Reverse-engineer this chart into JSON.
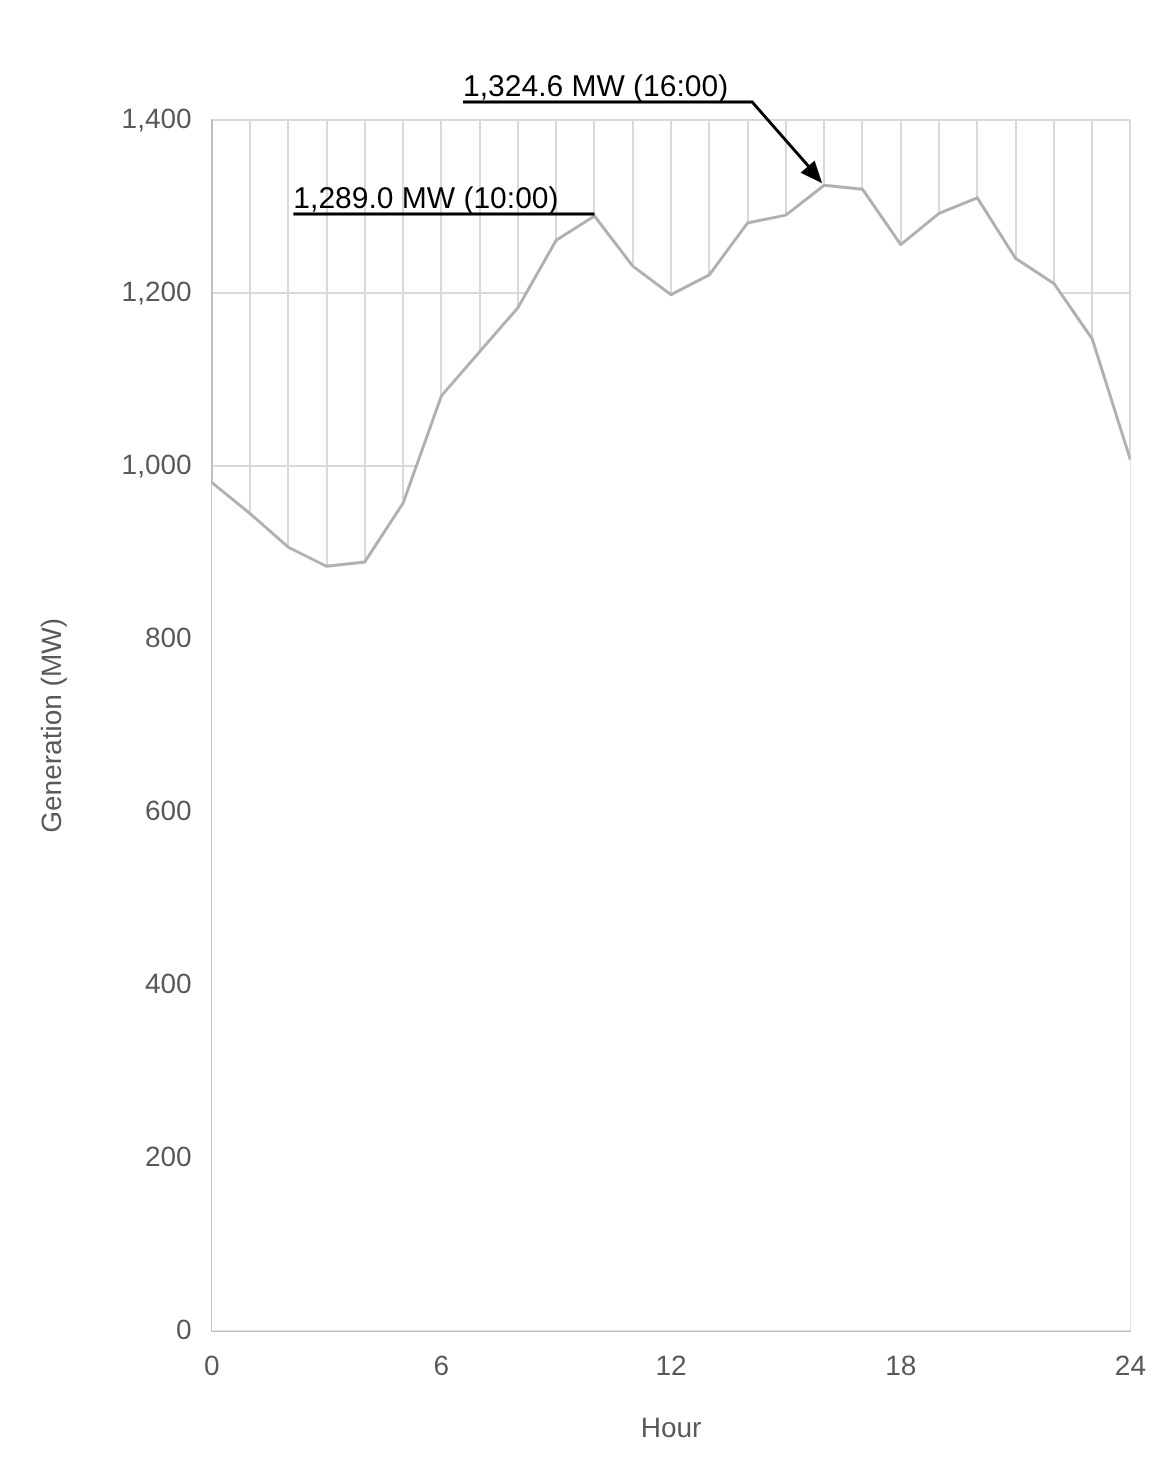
{
  "chart_data": {
    "type": "line",
    "xlabel": "Hour",
    "ylabel": "Generation (MW)",
    "x": [
      0,
      1,
      2,
      3,
      4,
      5,
      6,
      7,
      8,
      9,
      10,
      11,
      12,
      13,
      14,
      15,
      16,
      17,
      18,
      19,
      20,
      21,
      22,
      23,
      24
    ],
    "values": [
      981,
      945,
      906,
      884,
      889,
      957,
      1081,
      1132,
      1183,
      1261,
      1289,
      1231,
      1198,
      1221,
      1281,
      1290,
      1324.6,
      1320,
      1256,
      1292,
      1310,
      1240,
      1211,
      1147,
      1007
    ],
    "color": "#b0b0b0",
    "xlim": [
      0,
      24
    ],
    "xticks": [
      0,
      {
        "value": 1,
        "label": null
      },
      {
        "value": 2,
        "label": null
      },
      {
        "value": 3,
        "label": null
      },
      {
        "value": 4,
        "label": null
      },
      {
        "value": 5,
        "label": null
      },
      6,
      {
        "value": 7,
        "label": null
      },
      {
        "value": 8,
        "label": null
      },
      {
        "value": 9,
        "label": null
      },
      {
        "value": 10,
        "label": null
      },
      {
        "value": 11,
        "label": null
      },
      12,
      {
        "value": 13,
        "label": null
      },
      {
        "value": 14,
        "label": null
      },
      {
        "value": 15,
        "label": null
      },
      {
        "value": 16,
        "label": null
      },
      {
        "value": 17,
        "label": null
      },
      18,
      {
        "value": 19,
        "label": null
      },
      {
        "value": 20,
        "label": null
      },
      {
        "value": 21,
        "label": null
      },
      {
        "value": 22,
        "label": null
      },
      {
        "value": 23,
        "label": null
      },
      24
    ],
    "ylim": [
      0,
      1400
    ],
    "yticks": [
      0,
      200,
      400,
      600,
      800,
      {
        "value": 1000,
        "label": "1,000"
      },
      {
        "value": 1200,
        "label": "1,200"
      },
      {
        "value": 1400,
        "label": "1,400"
      }
    ],
    "grid": true,
    "legend": false,
    "marker": "none",
    "annotations": [
      {
        "text": "1,289.0 MW (10:00)",
        "x": 10,
        "y": 1289
      },
      {
        "text": "1,324.6 MW (16:00)",
        "x": 16,
        "y": 1324.6
      }
    ]
  }
}
